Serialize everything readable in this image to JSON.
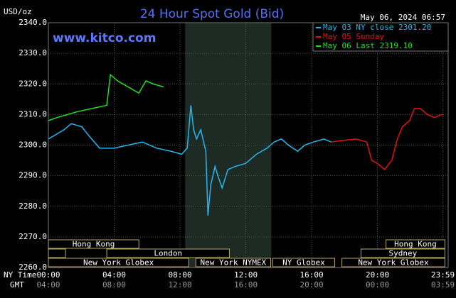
{
  "chart_data": {
    "type": "line",
    "title": "24 Hour Spot Gold (Bid)",
    "watermark": "www.kitco.com",
    "timestamp": "May 06, 2024 06:57",
    "ylabel": "USD/oz",
    "xlabel": "NY Time",
    "x2label": "GMT",
    "ylim": [
      2260,
      2340
    ],
    "yticks": [
      {
        "value": 2260,
        "label": "2260.0"
      },
      {
        "value": 2270,
        "label": "2270.0"
      },
      {
        "value": 2280,
        "label": "2280.0"
      },
      {
        "value": 2290,
        "label": "2290.0"
      },
      {
        "value": 2300,
        "label": "2300.0"
      },
      {
        "value": 2310,
        "label": "2310.0"
      },
      {
        "value": 2320,
        "label": "2320.0"
      },
      {
        "value": 2330,
        "label": "2330.0"
      },
      {
        "value": 2340,
        "label": "2340.0"
      }
    ],
    "xlim": [
      0,
      24.3
    ],
    "xticks": [
      {
        "value": 0,
        "label": "00:00"
      },
      {
        "value": 4,
        "label": "04:00"
      },
      {
        "value": 8,
        "label": "08:00"
      },
      {
        "value": 12,
        "label": "12:00"
      },
      {
        "value": 16,
        "label": "16:00"
      },
      {
        "value": 20,
        "label": "20:00"
      },
      {
        "value": 23.98,
        "label": "23:59"
      }
    ],
    "x2ticks": [
      {
        "value": 0,
        "label": "04:00"
      },
      {
        "value": 4,
        "label": "08:00"
      },
      {
        "value": 8,
        "label": "12:00"
      },
      {
        "value": 12,
        "label": "16:00"
      },
      {
        "value": 16,
        "label": "20:00"
      },
      {
        "value": 20,
        "label": "00:00"
      },
      {
        "value": 23.98,
        "label": "03:59"
      }
    ],
    "grid": true,
    "highlight_range": [
      8.31,
      13.55
    ],
    "legend": "upper right",
    "series": [
      {
        "name": "May 03 NY close 2301.20",
        "color": "#22b8f0",
        "x": [
          0,
          0.95,
          1.39,
          2.03,
          2.47,
          3.12,
          3.98,
          4.85,
          5.71,
          6.58,
          7.45,
          8.1,
          8.44,
          8.66,
          8.83,
          9.0,
          9.26,
          9.57,
          9.7,
          9.87,
          10.13,
          10.3,
          10.56,
          10.91,
          11.34,
          11.99,
          12.64,
          13.29,
          13.72,
          14.16,
          14.59,
          15.15,
          15.58,
          16.1,
          16.75,
          17.19
        ],
        "values": [
          2302,
          2305,
          2307,
          2306,
          2303,
          2299,
          2299,
          2300,
          2301,
          2299,
          2298,
          2297,
          2299,
          2313,
          2305,
          2302,
          2305,
          2298,
          2277,
          2287,
          2293,
          2290,
          2286,
          2292,
          2293,
          2294,
          2297,
          2299,
          2301,
          2302,
          2300,
          2298,
          2300,
          2301,
          2302,
          2301
        ]
      },
      {
        "name": "May 05 Sunday",
        "color": "#e01010",
        "x": [
          17.19,
          17.84,
          18.7,
          19.35,
          19.65,
          20.0,
          20.43,
          20.87,
          21.21,
          21.52,
          21.95,
          22.25,
          22.6,
          23.03,
          23.46,
          23.9,
          23.98
        ],
        "values": [
          2301,
          2301.5,
          2302,
          2301,
          2295,
          2294,
          2292,
          2295,
          2302,
          2306,
          2308,
          2312,
          2312,
          2310,
          2309,
          2310,
          2310
        ]
      },
      {
        "name": "May 06 Last 2319.10",
        "color": "#22dd22",
        "x": [
          0,
          0.52,
          1.17,
          1.82,
          2.68,
          3.55,
          3.77,
          4.2,
          4.85,
          5.5,
          5.93,
          6.36,
          7.01
        ],
        "values": [
          2308,
          2309,
          2310,
          2311,
          2312,
          2313,
          2323,
          2321,
          2319,
          2317,
          2321,
          2320,
          2319
        ]
      }
    ],
    "sessions": [
      {
        "label": "Hong Kong",
        "start": 0,
        "end": 5.5,
        "row": 0
      },
      {
        "label": "Hong Kong",
        "start": 20.52,
        "end": 24.1,
        "row": 0
      },
      {
        "start": 0,
        "end": 1.04,
        "row": 1
      },
      {
        "label": "London",
        "start": 3.55,
        "end": 11.0,
        "row": 1
      },
      {
        "label": "Sydney",
        "start": 19.0,
        "end": 24.1,
        "row": 1
      },
      {
        "label": "New York Globex",
        "start": 0,
        "end": 8.53,
        "row": 2
      },
      {
        "label": "New York NYMEX",
        "start": 8.96,
        "end": 13.51,
        "row": 2
      },
      {
        "label": "NY Globex",
        "start": 13.64,
        "end": 17.4,
        "row": 2
      },
      {
        "label": "New York Globex",
        "start": 17.84,
        "end": 24.1,
        "row": 2
      }
    ]
  }
}
